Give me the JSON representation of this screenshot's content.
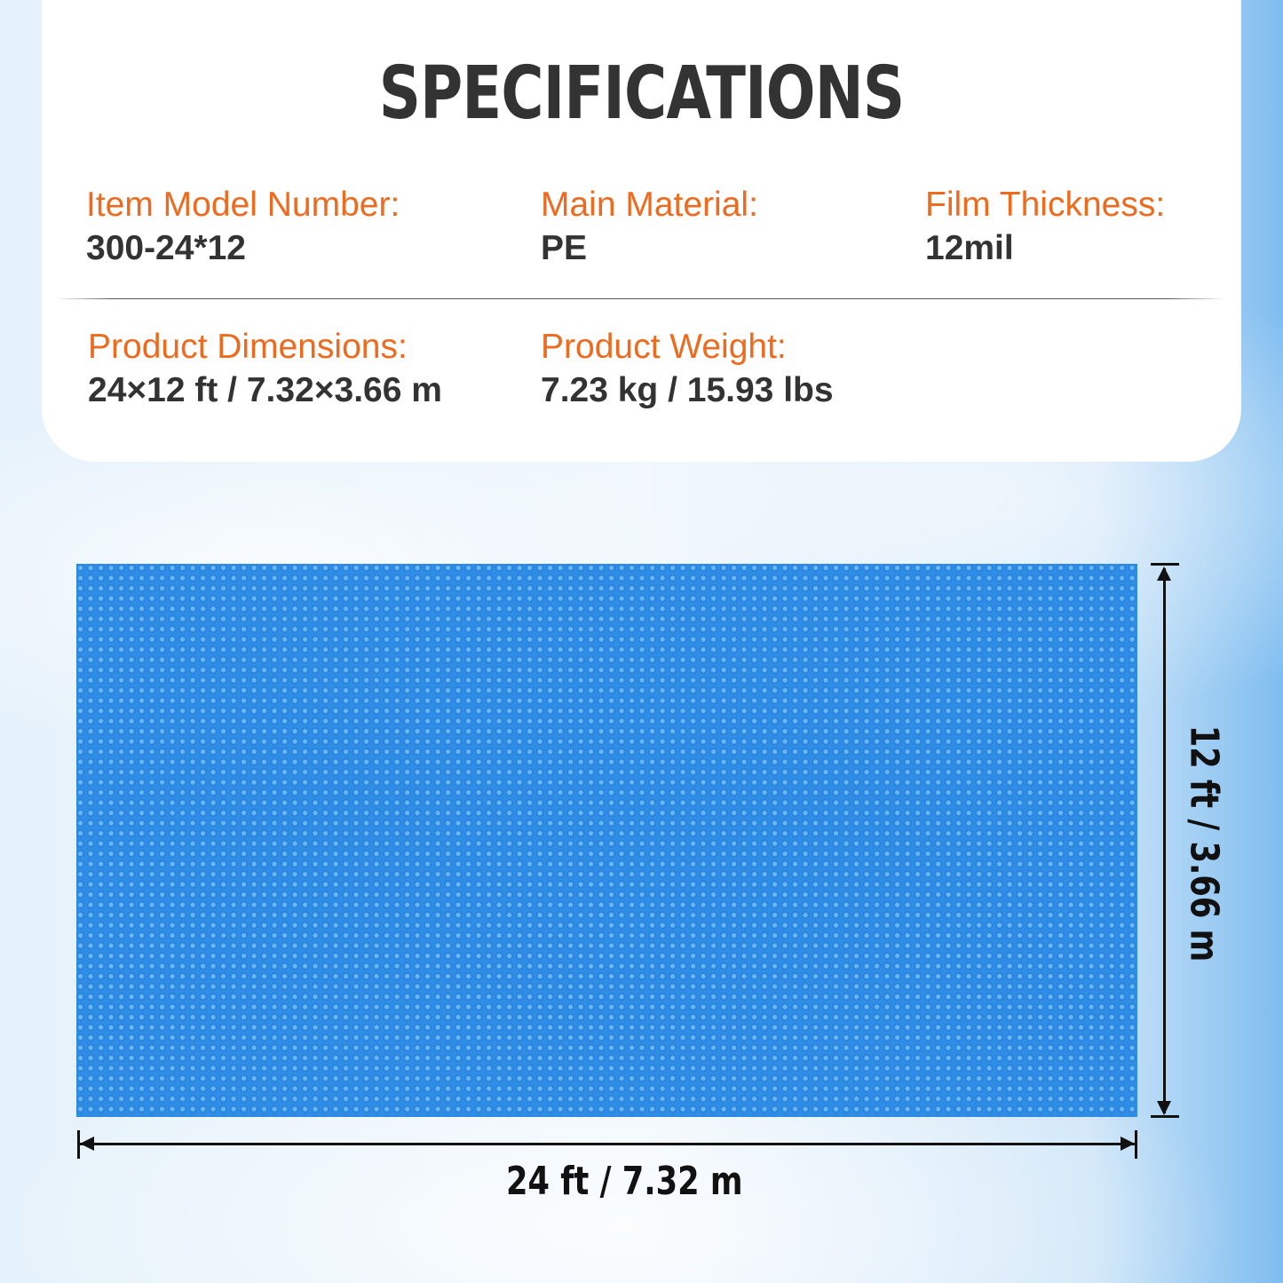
{
  "title": "SPECIFICATIONS",
  "specs": [
    {
      "label": "Item Model Number:",
      "value": "300-24*12"
    },
    {
      "label": "Main Material:",
      "value": "PE"
    },
    {
      "label": "Film Thickness:",
      "value": "12mil"
    },
    {
      "label": "Product Dimensions:",
      "value": "24×12 ft / 7.32×3.66 m"
    },
    {
      "label": "Product Weight:",
      "value": "7.23 kg / 15.93 lbs"
    }
  ],
  "dimensions": {
    "width": "24 ft / 7.32 m",
    "height": "12 ft / 3.66 m"
  },
  "colors": {
    "accent": "#ee6a1e",
    "text": "#333333",
    "cover": "#2f8de6"
  }
}
